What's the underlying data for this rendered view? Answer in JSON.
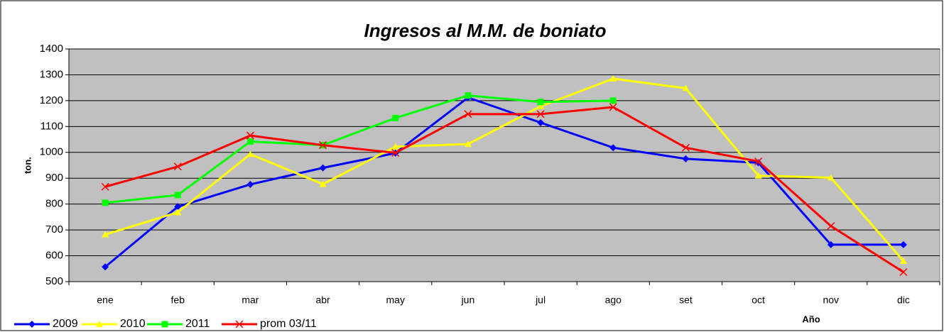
{
  "chart_data": {
    "type": "line",
    "title": "Ingresos al M.M. de boniato",
    "x_label": "Año",
    "y_label": "ton.",
    "categories": [
      "ene",
      "feb",
      "mar",
      "abr",
      "may",
      "jun",
      "jul",
      "ago",
      "set",
      "oct",
      "nov",
      "dic"
    ],
    "series": [
      {
        "name": "2009",
        "color": "#0000ff",
        "marker": "diamond",
        "values": [
          557,
          790,
          876,
          940,
          997,
          1212,
          1115,
          1018,
          975,
          960,
          643,
          643
        ]
      },
      {
        "name": "2010",
        "color": "#ffff00",
        "marker": "triangle",
        "values": [
          682,
          768,
          993,
          877,
          1022,
          1032,
          1178,
          1285,
          1248,
          910,
          902,
          580
        ]
      },
      {
        "name": "2011",
        "color": "#00ff00",
        "marker": "square",
        "values": [
          805,
          835,
          1042,
          1028,
          1133,
          1220,
          1195,
          1200,
          null,
          null,
          null,
          null
        ]
      },
      {
        "name": "prom 03/11",
        "color": "#ff0000",
        "marker": "x",
        "values": [
          867,
          945,
          1065,
          1028,
          998,
          1148,
          1148,
          1175,
          1018,
          965,
          715,
          537
        ]
      }
    ],
    "ylim": [
      500,
      1400
    ],
    "yticks": [
      500,
      600,
      700,
      800,
      900,
      1000,
      1100,
      1200,
      1300,
      1400
    ],
    "grid": true,
    "plot_background": "#c0c0c0",
    "legend": "bottom-left"
  }
}
